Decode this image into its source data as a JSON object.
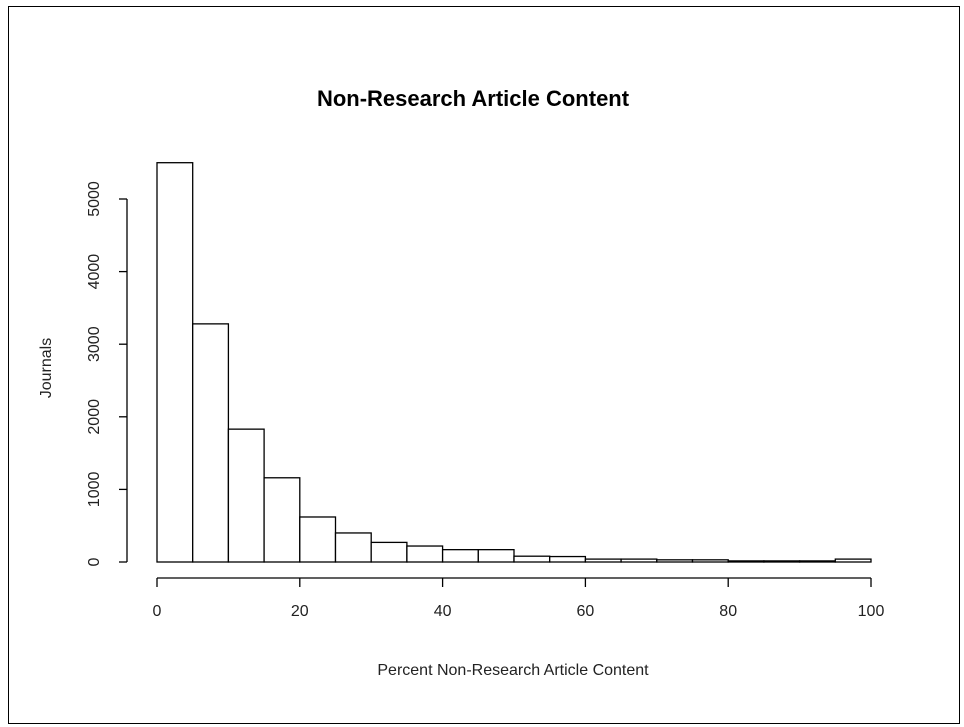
{
  "chart_data": {
    "type": "bar",
    "title": "Non-Research Article Content",
    "xlabel": "Percent Non-Research Article Content",
    "ylabel": "Journals",
    "bins": [
      [
        0,
        5
      ],
      [
        5,
        10
      ],
      [
        10,
        15
      ],
      [
        15,
        20
      ],
      [
        20,
        25
      ],
      [
        25,
        30
      ],
      [
        30,
        35
      ],
      [
        35,
        40
      ],
      [
        40,
        45
      ],
      [
        45,
        50
      ],
      [
        50,
        55
      ],
      [
        55,
        60
      ],
      [
        60,
        65
      ],
      [
        65,
        70
      ],
      [
        70,
        75
      ],
      [
        75,
        80
      ],
      [
        80,
        85
      ],
      [
        85,
        90
      ],
      [
        90,
        95
      ],
      [
        95,
        100
      ]
    ],
    "values": [
      5500,
      3280,
      1830,
      1160,
      620,
      400,
      270,
      220,
      170,
      170,
      80,
      75,
      40,
      40,
      30,
      30,
      15,
      15,
      15,
      40
    ],
    "xlim": [
      0,
      100
    ],
    "ylim": [
      0,
      5000
    ],
    "xticks": [
      0,
      20,
      40,
      60,
      80,
      100
    ],
    "yticks": [
      0,
      1000,
      2000,
      3000,
      4000,
      5000
    ],
    "grid": false
  }
}
